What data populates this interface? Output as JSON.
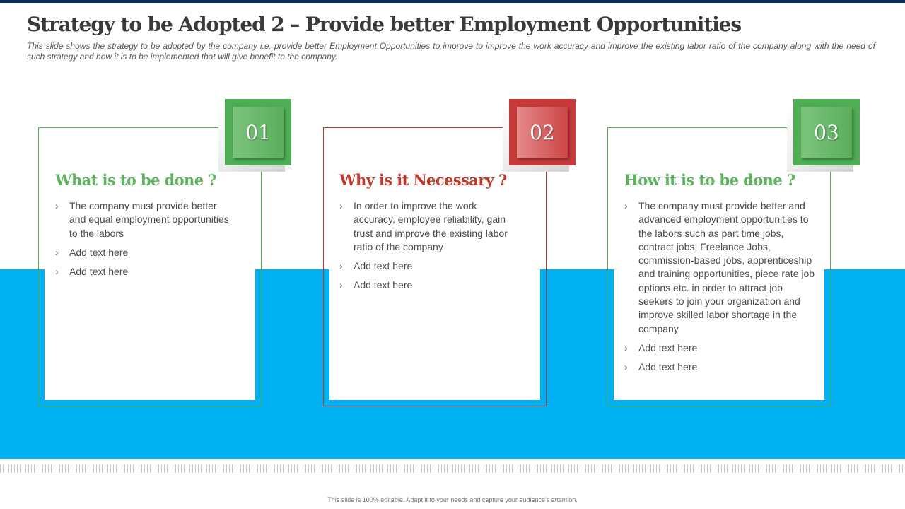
{
  "slide": {
    "title": "Strategy to be Adopted 2 – Provide better Employment Opportunities",
    "subtitle": "This slide shows the strategy to be adopted by the company i.e. provide better Employment Opportunities to improve to improve the work accuracy and improve the existing labor ratio of the company along with the need of such strategy and how it is to be implemented that will give benefit to the company.",
    "footer": "This slide is 100% editable. Adapt it to your needs and capture your audience's attention."
  },
  "colors": {
    "green": "#5cb25e",
    "red": "#c0392b",
    "band_blue": "#00b0f0",
    "title_gray": "#3a3a3a"
  },
  "cards": [
    {
      "number": "01",
      "heading": "What is to be done ?",
      "bullets": [
        "The company must provide better and equal employment opportunities to the labors",
        "Add text here",
        "Add text here"
      ]
    },
    {
      "number": "02",
      "heading": "Why is it Necessary ?",
      "bullets": [
        "In order to improve the work accuracy, employee reliability, gain trust and improve the existing labor ratio of the company",
        "Add text here",
        "Add text here"
      ]
    },
    {
      "number": "03",
      "heading": "How it is to be done ?",
      "bullets": [
        "The company must provide better and advanced employment opportunities to the labors such as part time jobs, contract jobs, Freelance Jobs, commission-based jobs, apprenticeship and training opportunities, piece rate job options etc. in order to attract job seekers to join your organization and improve skilled labor shortage in the company",
        "Add text here",
        "Add text here"
      ]
    }
  ]
}
